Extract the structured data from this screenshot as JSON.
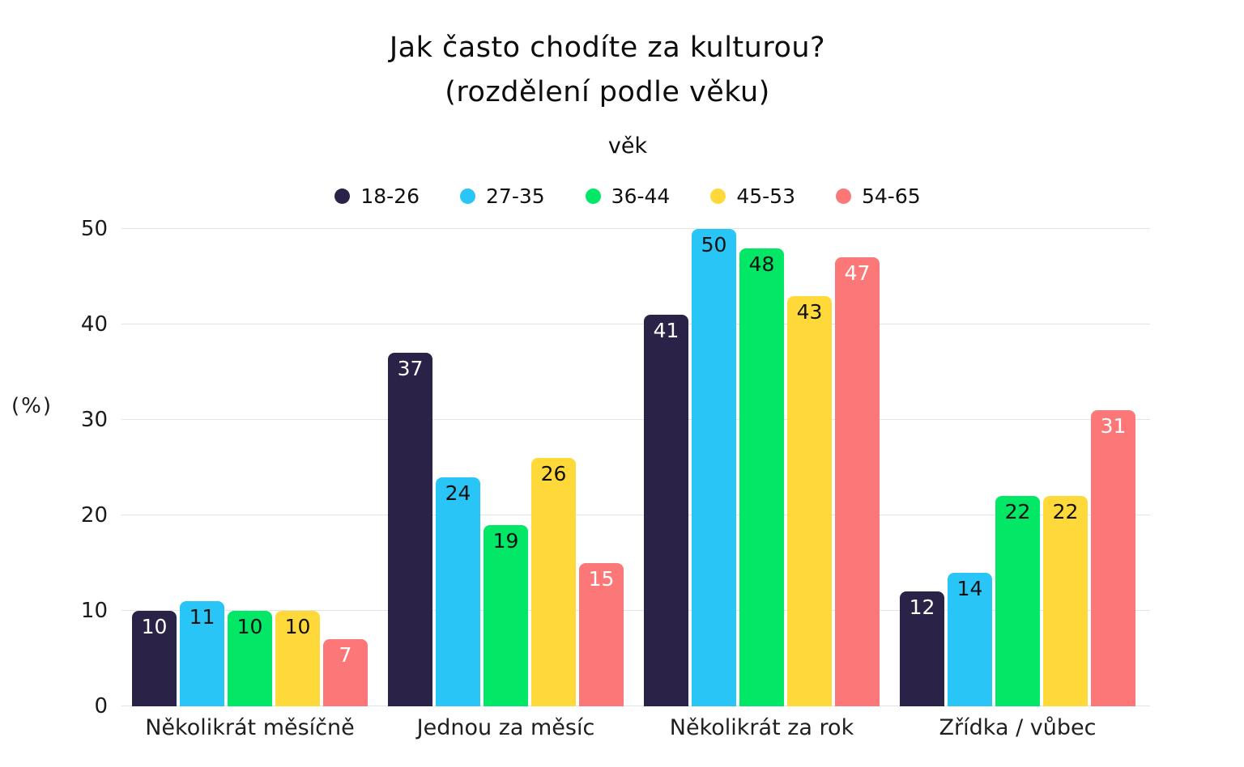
{
  "title": {
    "line1": "Jak často chodíte za kulturou?",
    "line2": "(rozdělení podle věku)"
  },
  "legend": {
    "title": "věk",
    "items": [
      {
        "label": "18-26",
        "color": "#2b2347"
      },
      {
        "label": "27-35",
        "color": "#29c5f6"
      },
      {
        "label": "36-44",
        "color": "#02e765"
      },
      {
        "label": "45-53",
        "color": "#ffd93a"
      },
      {
        "label": "54-65",
        "color": "#fc7878"
      }
    ]
  },
  "y_axis": {
    "label": "(%)",
    "ticks": [
      0,
      10,
      20,
      30,
      40,
      50
    ]
  },
  "chart_data": {
    "type": "bar",
    "title": "Jak často chodíte za kulturou? (rozdělení podle věku)",
    "subtitle": "věk",
    "categories": [
      "Několikrát měsíčně",
      "Jednou za měsíc",
      "Několikrát za rok",
      "Zřídka / vůbec"
    ],
    "series": [
      {
        "name": "18-26",
        "color": "#2b2347",
        "label_color": "#ffffff",
        "values": [
          10,
          37,
          41,
          12
        ]
      },
      {
        "name": "27-35",
        "color": "#29c5f6",
        "label_color": "#111111",
        "values": [
          11,
          24,
          50,
          14
        ]
      },
      {
        "name": "36-44",
        "color": "#02e765",
        "label_color": "#111111",
        "values": [
          10,
          19,
          48,
          22
        ]
      },
      {
        "name": "45-53",
        "color": "#ffd93a",
        "label_color": "#111111",
        "values": [
          10,
          26,
          43,
          22
        ]
      },
      {
        "name": "54-65",
        "color": "#fc7878",
        "label_color": "#ffffff",
        "values": [
          7,
          15,
          47,
          31
        ]
      }
    ],
    "xlabel": "",
    "ylabel": "(%)",
    "ylim": [
      0,
      50
    ],
    "grid": true,
    "legend_position": "top",
    "value_labels": "inside-top"
  }
}
